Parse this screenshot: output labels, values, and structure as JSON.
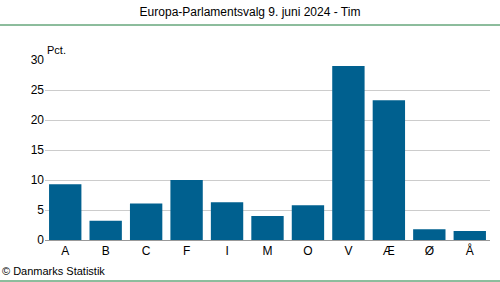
{
  "chart_data": {
    "type": "bar",
    "title": "Europa-Parlamentsvalg 9. juni 2024 - Tim",
    "ylabel": "Pct.",
    "annotations": [
      "© Danmarks Statistik"
    ],
    "categories": [
      "A",
      "B",
      "C",
      "F",
      "I",
      "M",
      "O",
      "V",
      "Æ",
      "Ø",
      "Å"
    ],
    "values": [
      9.3,
      3.2,
      6.1,
      10.0,
      6.3,
      4.0,
      5.8,
      29.0,
      23.3,
      1.8,
      1.5
    ],
    "color": "#00608f",
    "ylim": [
      0,
      30
    ],
    "yticks": [
      0,
      5,
      10,
      15,
      20,
      25,
      30
    ],
    "grid": true
  }
}
